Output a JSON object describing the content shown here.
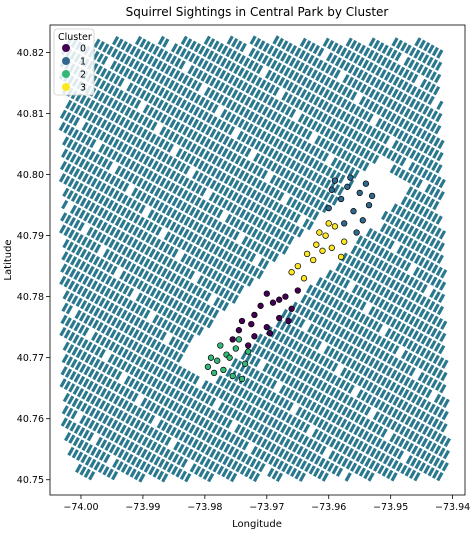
{
  "chart_data": {
    "type": "scatter",
    "title": "Squirrel Sightings in Central Park by Cluster",
    "xlabel": "Longitude",
    "ylabel": "Latitude",
    "xlim": [
      -74.005,
      -73.938
    ],
    "ylim": [
      40.7475,
      40.8245
    ],
    "x_ticks": [
      -74.0,
      -73.99,
      -73.98,
      -73.97,
      -73.96,
      -73.95,
      -73.94
    ],
    "x_tick_labels": [
      "−74.00",
      "−73.99",
      "−73.98",
      "−73.97",
      "−73.96",
      "−73.95",
      "−73.94"
    ],
    "y_ticks": [
      40.75,
      40.76,
      40.77,
      40.78,
      40.79,
      40.8,
      40.81,
      40.82
    ],
    "y_tick_labels": [
      "40.75",
      "40.76",
      "40.77",
      "40.78",
      "40.79",
      "40.80",
      "40.81",
      "40.82"
    ],
    "grid": false,
    "basemap_color": "#2a788e",
    "legend": {
      "title": "Cluster",
      "placement": "top-left",
      "entries": [
        "0",
        "1",
        "2",
        "3"
      ]
    },
    "series": [
      {
        "name": "0",
        "color": "#440154",
        "x": [
          -73.9745,
          -73.972,
          -73.97,
          -73.968,
          -73.966,
          -73.969,
          -73.972,
          -73.974,
          -73.967,
          -73.965,
          -73.971,
          -73.973,
          -73.9755,
          -73.97,
          -73.968,
          -73.9725,
          -73.9665,
          -73.9695
        ],
        "y": [
          40.7745,
          40.7735,
          40.775,
          40.7765,
          40.778,
          40.779,
          40.777,
          40.776,
          40.78,
          40.781,
          40.7785,
          40.772,
          40.773,
          40.7805,
          40.7795,
          40.7755,
          40.776,
          40.774
        ]
      },
      {
        "name": "1",
        "color": "#31688e",
        "x": [
          -73.959,
          -73.957,
          -73.955,
          -73.9535,
          -73.958,
          -73.956,
          -73.9545,
          -73.96,
          -73.9575,
          -73.9555,
          -73.9565,
          -73.954,
          -73.9595,
          -73.953
        ],
        "y": [
          40.799,
          40.798,
          40.797,
          40.795,
          40.796,
          40.794,
          40.7925,
          40.7945,
          40.792,
          40.7905,
          40.7995,
          40.7985,
          40.7975,
          40.7965
        ]
      },
      {
        "name": "2",
        "color": "#35b779",
        "x": [
          -73.9795,
          -73.978,
          -73.9765,
          -73.975,
          -73.9735,
          -73.9785,
          -73.977,
          -73.9755,
          -73.974,
          -73.9775,
          -73.976,
          -73.9745,
          -73.979,
          -73.973
        ],
        "y": [
          40.7685,
          40.7695,
          40.7705,
          40.7715,
          40.769,
          40.7675,
          40.768,
          40.767,
          40.7665,
          40.772,
          40.77,
          40.773,
          40.77,
          40.771
        ]
      },
      {
        "name": "3",
        "color": "#fde725",
        "x": [
          -73.965,
          -73.9635,
          -73.962,
          -73.9605,
          -73.959,
          -73.9575,
          -73.964,
          -73.9625,
          -73.961,
          -73.9595,
          -73.958,
          -73.966,
          -73.9615,
          -73.96
        ],
        "y": [
          40.785,
          40.787,
          40.7885,
          40.79,
          40.7915,
          40.789,
          40.783,
          40.786,
          40.7875,
          40.788,
          40.7865,
          40.784,
          40.7905,
          40.792
        ]
      }
    ]
  }
}
